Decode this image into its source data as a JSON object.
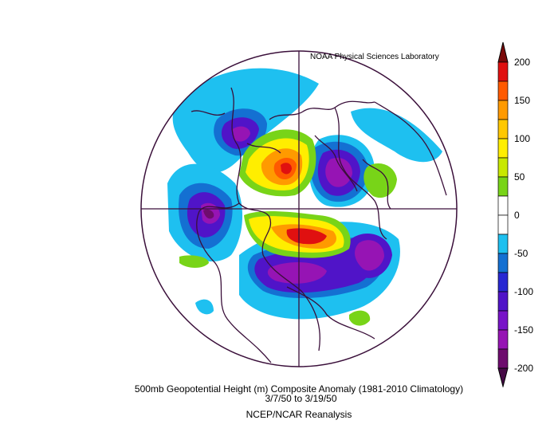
{
  "credit": "NOAA Physical Sciences Laboratory",
  "caption": {
    "line1": "500mb Geopotential Height (m) Composite Anomaly (1981-2010 Climatology)",
    "line2": "3/7/50  to 3/19/50",
    "line3": "NCEP/NCAR Reanalysis"
  },
  "colorbar": {
    "ticks": [
      "200",
      "150",
      "100",
      "50",
      "0",
      "-50",
      "-100",
      "-150",
      "-200"
    ],
    "colors": [
      "#7a0a0a",
      "#e01010",
      "#ff5a00",
      "#ff9a00",
      "#ffc800",
      "#ffee00",
      "#c8e800",
      "#78d418",
      "#ffffff",
      "#ffffff",
      "#1ec0f0",
      "#1470d2",
      "#2828d2",
      "#5014c8",
      "#7814c8",
      "#9614b4",
      "#6e0c6e",
      "#460a46"
    ]
  },
  "map": {
    "projection": "north-polar-stereographic",
    "anomaly_centers": [
      {
        "label": "positive",
        "color": "#e01010"
      },
      {
        "label": "negative",
        "color": "#5014c8"
      }
    ]
  }
}
